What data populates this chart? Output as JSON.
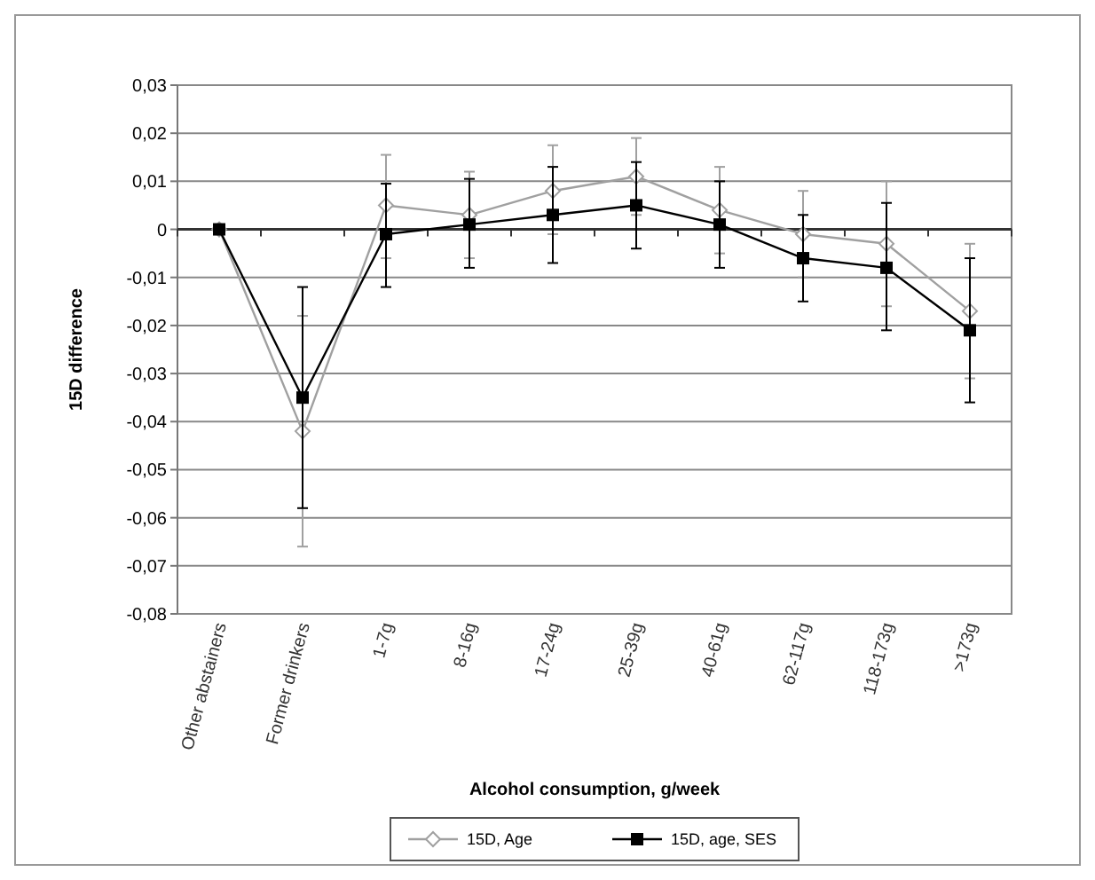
{
  "chart_data": {
    "type": "line",
    "xlabel": "Alcohol consumption, g/week",
    "ylabel": "15D difference",
    "categories": [
      "Other abstainers",
      "Former drinkers",
      "1-7g",
      "8-16g",
      "17-24g",
      "25-39g",
      "40-61g",
      "62-117g",
      "118-173g",
      ">173g"
    ],
    "ylim": [
      -0.08,
      0.03
    ],
    "yticks": [
      {
        "value": -0.08,
        "label": "-0,08"
      },
      {
        "value": -0.07,
        "label": "-0,07"
      },
      {
        "value": -0.06,
        "label": "-0,06"
      },
      {
        "value": -0.05,
        "label": "-0,05"
      },
      {
        "value": -0.04,
        "label": "-0,04"
      },
      {
        "value": -0.03,
        "label": "-0,03"
      },
      {
        "value": -0.02,
        "label": "-0,02"
      },
      {
        "value": -0.01,
        "label": "-0,01"
      },
      {
        "value": 0,
        "label": "0"
      },
      {
        "value": 0.01,
        "label": "0,01"
      },
      {
        "value": 0.02,
        "label": "0,02"
      },
      {
        "value": 0.03,
        "label": "0,03"
      }
    ],
    "grid": "y",
    "legend": "bottom",
    "series": [
      {
        "name": "15D, Age",
        "color": "#a0a0a0",
        "marker": "diamond",
        "values": [
          0,
          -0.042,
          0.005,
          0.003,
          0.008,
          0.011,
          0.004,
          -0.001,
          -0.003,
          -0.017
        ],
        "errors": [
          null,
          [
            -0.066,
            -0.018
          ],
          [
            -0.006,
            0.0155
          ],
          [
            -0.006,
            0.012
          ],
          [
            -0.001,
            0.0175
          ],
          [
            0.003,
            0.019
          ],
          [
            -0.005,
            0.013
          ],
          [
            -0.01,
            0.008
          ],
          [
            -0.016,
            0.01
          ],
          [
            -0.031,
            -0.003
          ]
        ]
      },
      {
        "name": "15D, age, SES",
        "color": "#000000",
        "marker": "square",
        "values": [
          0,
          -0.035,
          -0.001,
          0.001,
          0.003,
          0.005,
          0.001,
          -0.006,
          -0.008,
          -0.021
        ],
        "errors": [
          null,
          [
            -0.058,
            -0.012
          ],
          [
            -0.012,
            0.0095
          ],
          [
            -0.008,
            0.0105
          ],
          [
            -0.007,
            0.013
          ],
          [
            -0.004,
            0.014
          ],
          [
            -0.008,
            0.01
          ],
          [
            -0.015,
            0.003
          ],
          [
            -0.021,
            0.0055
          ],
          [
            -0.036,
            -0.006
          ]
        ]
      }
    ]
  }
}
